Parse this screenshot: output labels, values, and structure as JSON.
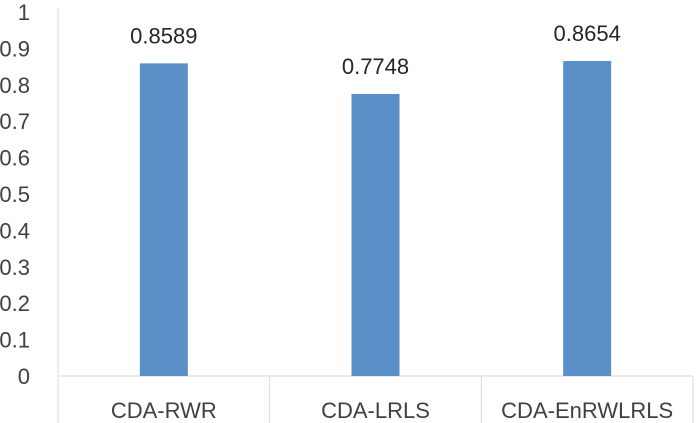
{
  "chart_data": {
    "type": "bar",
    "categories": [
      "CDA-RWR",
      "CDA-LRLS",
      "CDA-EnRWLRLS"
    ],
    "values": [
      0.8589,
      0.7748,
      0.8654
    ],
    "data_labels": [
      "0.8589",
      "0.7748",
      "0.8654"
    ],
    "title": "",
    "xlabel": "",
    "ylabel": "",
    "ylim": [
      0,
      1
    ],
    "yticks": [
      "0",
      "0.1",
      "0.2",
      "0.3",
      "0.4",
      "0.5",
      "0.6",
      "0.7",
      "0.8",
      "0.9",
      "1"
    ],
    "grid": false,
    "legend": "none",
    "bar_color": "#5B8FC8",
    "axis_color": "#D9D9D9"
  }
}
